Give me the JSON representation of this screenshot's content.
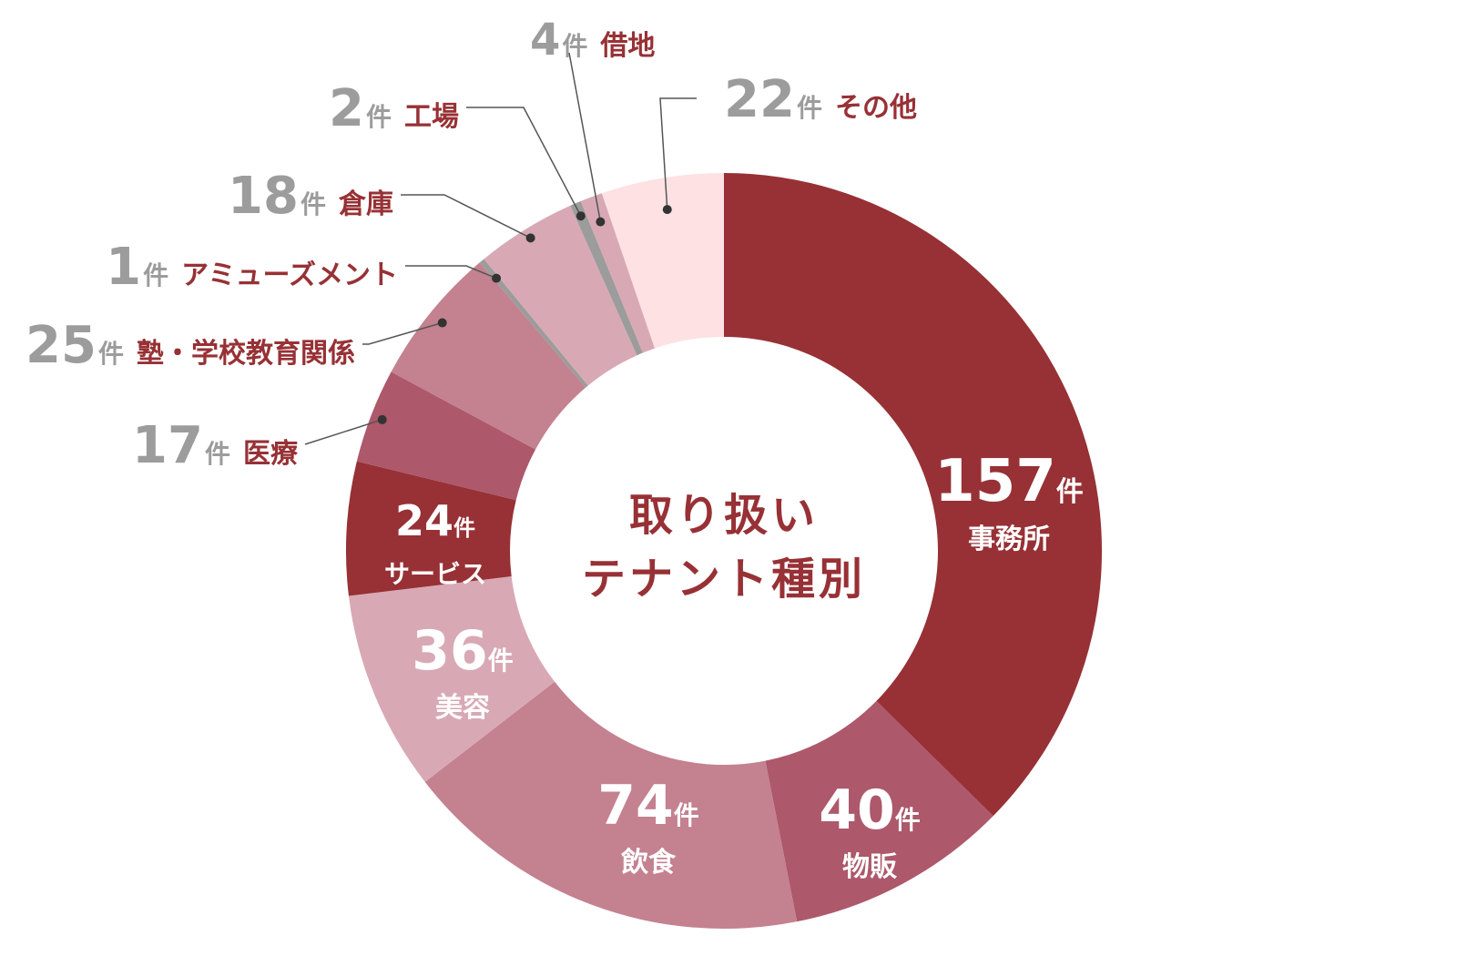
{
  "chart_data": {
    "type": "pie",
    "title": "取り扱いテナント種別",
    "title_lines": [
      "取り扱い",
      "テナント種別"
    ],
    "unit": "件",
    "slices": [
      {
        "label": "事務所",
        "value": 157,
        "color": "#973135"
      },
      {
        "label": "物販",
        "value": 40,
        "color": "#ad586b"
      },
      {
        "label": "飲食",
        "value": 74,
        "color": "#c48190"
      },
      {
        "label": "美容",
        "value": 36,
        "color": "#d8a9b4"
      },
      {
        "label": "サービス",
        "value": 24,
        "color": "#973135"
      },
      {
        "label": "医療",
        "value": 17,
        "color": "#ad586b"
      },
      {
        "label": "塾・学校教育関係",
        "value": 25,
        "color": "#c48190"
      },
      {
        "label": "アミューズメント",
        "value": 1,
        "color": "#9c9c9c"
      },
      {
        "label": "倉庫",
        "value": 18,
        "color": "#d8a9b4"
      },
      {
        "label": "工場",
        "value": 2,
        "color": "#9c9c9c"
      },
      {
        "label": "借地",
        "value": 4,
        "color": "#d8a9b4"
      },
      {
        "label": "その他",
        "value": 22,
        "color": "#fde1e3"
      }
    ]
  },
  "colors": {
    "accent": "#973135",
    "label_number_gray": "#9c9c9c",
    "label_text": "#973135",
    "inside_label": "#ffffff",
    "leader_line": "#555555"
  }
}
